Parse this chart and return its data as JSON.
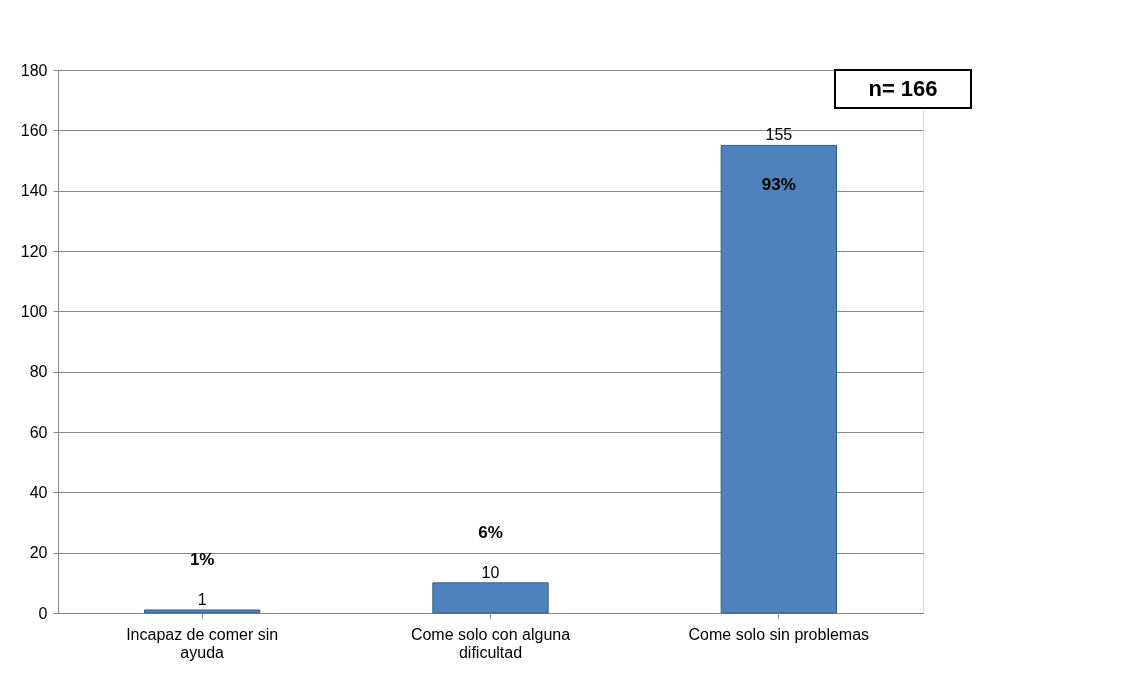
{
  "chart_data": {
    "type": "bar",
    "categories": [
      "Incapaz de comer sin ayuda",
      "Come solo con alguna dificultad",
      "Come solo sin problemas"
    ],
    "values": [
      1,
      10,
      155
    ],
    "color": "#4f81bd",
    "ylim": [
      0,
      180
    ],
    "yticks": [
      0,
      20,
      40,
      60,
      80,
      100,
      120,
      140,
      160,
      180
    ],
    "grid": "y",
    "data_labels": true,
    "annotations": [
      "1%",
      "6%",
      "93%",
      "n= 166"
    ]
  }
}
